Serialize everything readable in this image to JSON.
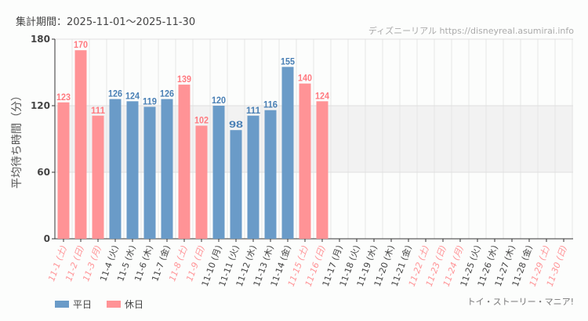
{
  "period_text": "集計期間：2025-11-01～2025-11-30",
  "credit": "ディズニーリアル https://disneyreal.asumirai.info",
  "footer": "トイ・ストーリー・マニア!",
  "colors": {
    "weekday": "#6a9bc8",
    "holiday": "#ff9396",
    "weekday_label": "#4a80b5",
    "holiday_label": "#ff7a80",
    "band": "#f2f2f2"
  },
  "legend": [
    {
      "name": "平日",
      "color": "#6a9bc8"
    },
    {
      "name": "休日",
      "color": "#ff9396"
    }
  ],
  "chart_data": {
    "type": "bar",
    "ylabel": "平均待ち時間（分）",
    "ylim": [
      0,
      180
    ],
    "yticks": [
      0,
      60,
      120,
      180
    ],
    "shaded_band": [
      60,
      120
    ],
    "grid": true,
    "legend_position": "bottom-left",
    "categories": [
      "11-1 (土)",
      "11-2 (日)",
      "11-3 (月)",
      "11-4 (火)",
      "11-5 (水)",
      "11-6 (木)",
      "11-7 (金)",
      "11-8 (土)",
      "11-9 (日)",
      "11-10 (月)",
      "11-11 (火)",
      "11-12 (水)",
      "11-13 (木)",
      "11-14 (金)",
      "11-15 (土)",
      "11-16 (日)",
      "11-17 (月)",
      "11-18 (火)",
      "11-19 (水)",
      "11-20 (木)",
      "11-21 (金)",
      "11-22 (土)",
      "11-23 (日)",
      "11-24 (月)",
      "11-25 (火)",
      "11-26 (水)",
      "11-27 (木)",
      "11-28 (金)",
      "11-29 (土)",
      "11-30 (日)"
    ],
    "holiday": [
      true,
      true,
      true,
      false,
      false,
      false,
      false,
      true,
      true,
      false,
      false,
      false,
      false,
      false,
      true,
      true,
      false,
      false,
      false,
      false,
      false,
      true,
      true,
      true,
      false,
      false,
      false,
      false,
      true,
      true
    ],
    "values": [
      123,
      170,
      111,
      126,
      124,
      119,
      126,
      139,
      102,
      120,
      98,
      111,
      116,
      155,
      140,
      124,
      null,
      null,
      null,
      null,
      null,
      null,
      null,
      null,
      null,
      null,
      null,
      null,
      null,
      null
    ]
  }
}
